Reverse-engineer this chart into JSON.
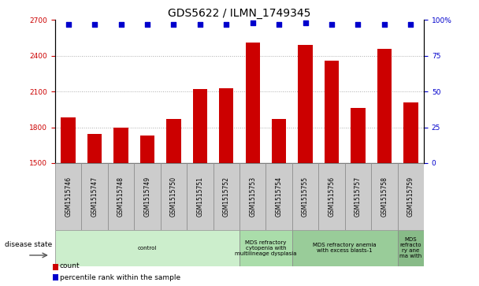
{
  "title": "GDS5622 / ILMN_1749345",
  "samples": [
    "GSM1515746",
    "GSM1515747",
    "GSM1515748",
    "GSM1515749",
    "GSM1515750",
    "GSM1515751",
    "GSM1515752",
    "GSM1515753",
    "GSM1515754",
    "GSM1515755",
    "GSM1515756",
    "GSM1515757",
    "GSM1515758",
    "GSM1515759"
  ],
  "counts": [
    1880,
    1745,
    1800,
    1730,
    1870,
    2120,
    2130,
    2510,
    1870,
    2490,
    2360,
    1960,
    2460,
    2010
  ],
  "percentile_ranks": [
    97,
    97,
    97,
    97,
    97,
    97,
    97,
    98,
    97,
    98,
    97,
    97,
    97,
    97
  ],
  "bar_color": "#cc0000",
  "dot_color": "#0000cc",
  "ylim_left": [
    1500,
    2700
  ],
  "ylim_right": [
    0,
    100
  ],
  "yticks_left": [
    1500,
    1800,
    2100,
    2400,
    2700
  ],
  "yticks_right": [
    0,
    25,
    50,
    75,
    100
  ],
  "ytick_labels_right": [
    "0",
    "25",
    "50",
    "75",
    "100%"
  ],
  "grid_values": [
    1800,
    2100,
    2400
  ],
  "disease_groups": [
    {
      "label": "control",
      "start": 0,
      "end": 7,
      "color": "#cceecc"
    },
    {
      "label": "MDS refractory\ncytopenia with\nmultilineage dysplasia",
      "start": 7,
      "end": 9,
      "color": "#aaddaa"
    },
    {
      "label": "MDS refractory anemia\nwith excess blasts-1",
      "start": 9,
      "end": 13,
      "color": "#99cc99"
    },
    {
      "label": "MDS\nrefracto\nry ane\nma with",
      "start": 13,
      "end": 14,
      "color": "#88bb88"
    }
  ],
  "disease_state_label": "disease state",
  "legend_count_label": "count",
  "legend_pct_label": "percentile rank within the sample",
  "title_fontsize": 10,
  "tick_fontsize": 6.5,
  "sample_fontsize": 5.5,
  "bar_width": 0.55,
  "sample_box_color": "#cccccc",
  "bg_color": "white"
}
